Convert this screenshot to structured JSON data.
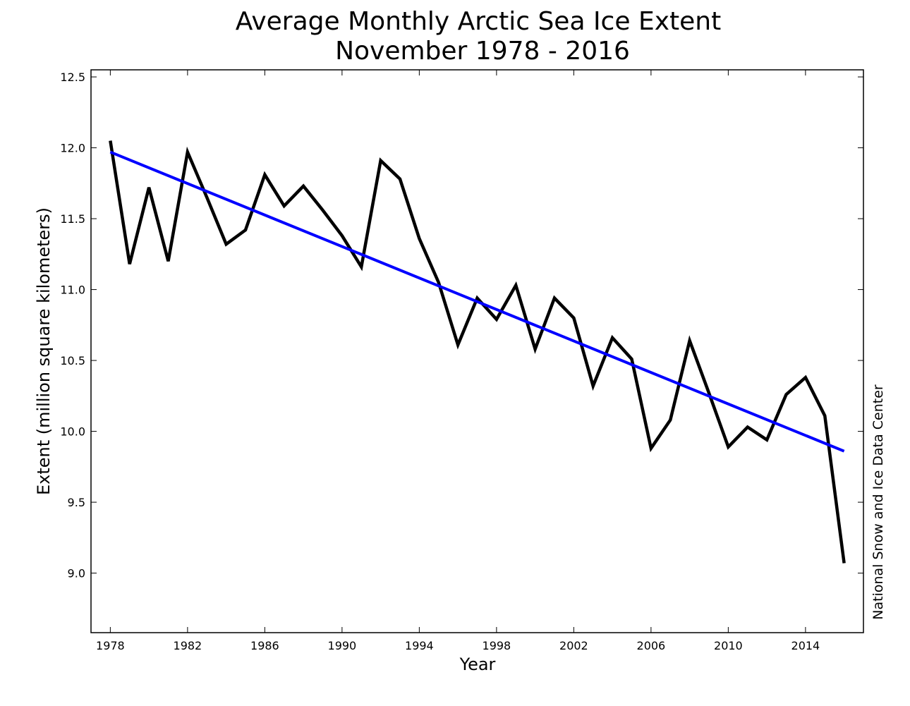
{
  "chart_data": {
    "type": "line",
    "title": "Average Monthly Arctic Sea Ice Extent",
    "subtitle": "November 1978 - 2016",
    "xlabel": "Year",
    "ylabel": "Extent (million square kilometers)",
    "credit": "National Snow and Ice Data Center",
    "xlim": [
      1977,
      2017
    ],
    "ylim": [
      8.58,
      12.55
    ],
    "xticks": [
      1978,
      1982,
      1986,
      1990,
      1994,
      1998,
      2002,
      2006,
      2010,
      2014
    ],
    "yticks": [
      "9.0",
      "9.5",
      "10.0",
      "10.5",
      "11.0",
      "11.5",
      "12.0",
      "12.5"
    ],
    "grid": false,
    "x": [
      1978,
      1979,
      1980,
      1981,
      1982,
      1983,
      1984,
      1985,
      1986,
      1987,
      1988,
      1989,
      1990,
      1991,
      1992,
      1993,
      1994,
      1995,
      1996,
      1997,
      1998,
      1999,
      2000,
      2001,
      2002,
      2003,
      2004,
      2005,
      2006,
      2007,
      2008,
      2009,
      2010,
      2011,
      2012,
      2013,
      2014,
      2015,
      2016
    ],
    "series": [
      {
        "color": "#000000",
        "values": [
          12.05,
          11.18,
          11.72,
          11.2,
          11.97,
          11.65,
          11.32,
          11.42,
          11.81,
          11.59,
          11.73,
          11.56,
          11.38,
          11.16,
          11.91,
          11.78,
          11.36,
          11.05,
          10.61,
          10.94,
          10.79,
          11.03,
          10.58,
          10.94,
          10.8,
          10.32,
          10.66,
          10.51,
          9.88,
          10.08,
          10.64,
          10.27,
          9.89,
          10.03,
          9.94,
          10.26,
          10.38,
          10.11,
          9.07
        ]
      }
    ],
    "trend": {
      "color": "#0000ff",
      "x": [
        1978,
        2016
      ],
      "values": [
        11.97,
        9.86
      ]
    }
  }
}
